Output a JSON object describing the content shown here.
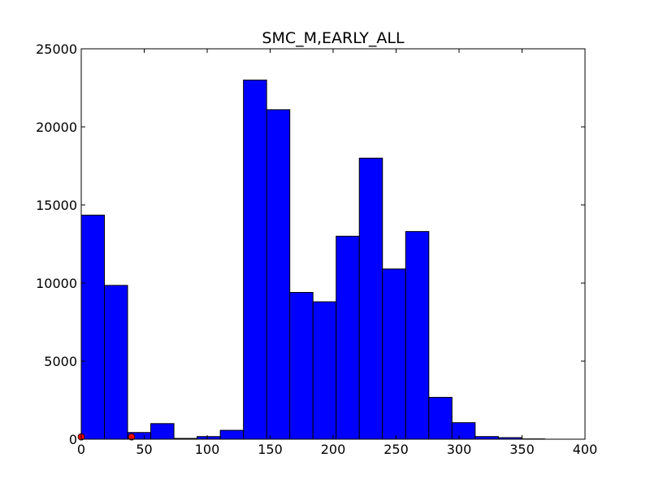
{
  "chart_data": {
    "type": "bar",
    "title": "SMC_M,EARLY_ALL",
    "xlabel": "",
    "ylabel": "",
    "xlim": [
      0,
      400
    ],
    "ylim": [
      0,
      25000
    ],
    "x_ticks": [
      "0",
      "50",
      "100",
      "150",
      "200",
      "250",
      "300",
      "350",
      "400"
    ],
    "y_ticks": [
      "0",
      "5000",
      "10000",
      "15000",
      "20000",
      "25000"
    ],
    "grid": false,
    "bar_color": "#0000ff",
    "bar_edge_color": "#000000",
    "marker_color": "#ff0000",
    "bins": [
      {
        "x0": 0.0,
        "x1": 18.4,
        "value": 14350
      },
      {
        "x0": 18.4,
        "x1": 36.8,
        "value": 9850
      },
      {
        "x0": 36.8,
        "x1": 55.2,
        "value": 430
      },
      {
        "x0": 55.2,
        "x1": 73.6,
        "value": 1000
      },
      {
        "x0": 73.6,
        "x1": 92.0,
        "value": 50
      },
      {
        "x0": 92.0,
        "x1": 110.4,
        "value": 170
      },
      {
        "x0": 110.4,
        "x1": 128.8,
        "value": 570
      },
      {
        "x0": 128.8,
        "x1": 147.2,
        "value": 23000
      },
      {
        "x0": 147.2,
        "x1": 165.6,
        "value": 21100
      },
      {
        "x0": 165.6,
        "x1": 184.0,
        "value": 9400
      },
      {
        "x0": 184.0,
        "x1": 202.4,
        "value": 8800
      },
      {
        "x0": 202.4,
        "x1": 220.8,
        "value": 13000
      },
      {
        "x0": 220.8,
        "x1": 239.2,
        "value": 18000
      },
      {
        "x0": 239.2,
        "x1": 257.6,
        "value": 10900
      },
      {
        "x0": 257.6,
        "x1": 276.0,
        "value": 13300
      },
      {
        "x0": 276.0,
        "x1": 294.4,
        "value": 2680
      },
      {
        "x0": 294.4,
        "x1": 312.8,
        "value": 1060
      },
      {
        "x0": 312.8,
        "x1": 331.2,
        "value": 170
      },
      {
        "x0": 331.2,
        "x1": 349.6,
        "value": 100
      },
      {
        "x0": 349.6,
        "x1": 368.0,
        "value": 20
      }
    ],
    "markers": [
      {
        "x": 0,
        "y": 150
      },
      {
        "x": 40,
        "y": 150
      }
    ]
  }
}
